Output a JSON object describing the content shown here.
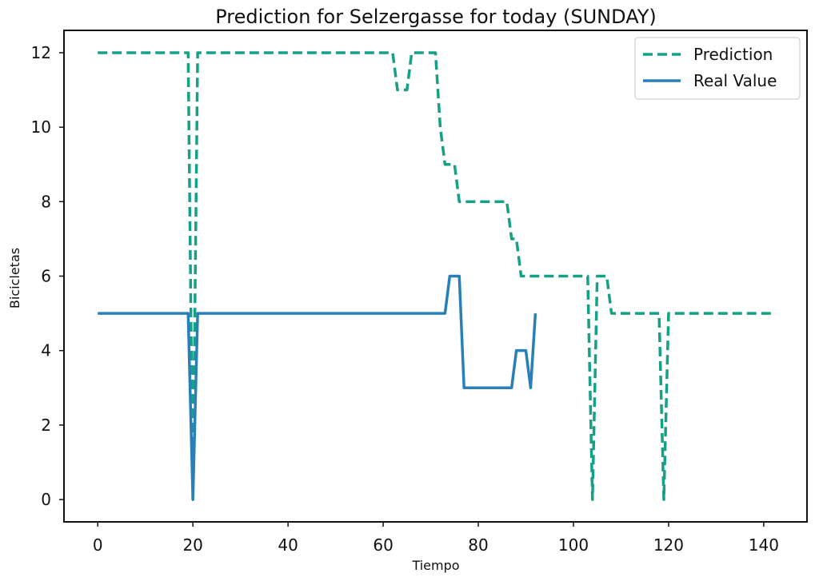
{
  "chart_data": {
    "type": "line",
    "title": "Prediction for Selzergasse for today (SUNDAY)",
    "xlabel": "Tiempo",
    "ylabel": "Bicicletas",
    "xlim": [
      -7.1,
      149.1
    ],
    "ylim": [
      -0.6,
      12.6
    ],
    "xticks": [
      0,
      20,
      40,
      60,
      80,
      100,
      120,
      140
    ],
    "yticks": [
      0,
      2,
      4,
      6,
      8,
      10,
      12
    ],
    "grid": false,
    "legend": "top-right",
    "series": [
      {
        "name": "Prediction",
        "style": "dashed",
        "color": "#16a085",
        "points": [
          [
            0,
            12
          ],
          [
            19,
            12
          ],
          [
            20,
            0
          ],
          [
            21,
            12
          ],
          [
            62,
            12
          ],
          [
            63,
            11
          ],
          [
            65,
            11
          ],
          [
            66,
            12
          ],
          [
            71,
            12
          ],
          [
            72,
            10
          ],
          [
            73,
            9
          ],
          [
            75,
            9
          ],
          [
            76,
            8
          ],
          [
            86,
            8
          ],
          [
            87,
            7
          ],
          [
            88,
            7
          ],
          [
            89,
            6
          ],
          [
            103,
            6
          ],
          [
            104,
            0
          ],
          [
            105,
            6
          ],
          [
            107,
            6
          ],
          [
            108,
            5
          ],
          [
            118,
            5
          ],
          [
            119,
            0
          ],
          [
            120,
            5
          ],
          [
            142,
            5
          ]
        ]
      },
      {
        "name": "Real Value",
        "style": "solid",
        "color": "#2980b9",
        "points": [
          [
            0,
            5
          ],
          [
            19,
            5
          ],
          [
            20,
            0
          ],
          [
            21,
            5
          ],
          [
            73,
            5
          ],
          [
            74,
            6
          ],
          [
            76,
            6
          ],
          [
            77,
            3
          ],
          [
            87,
            3
          ],
          [
            88,
            4
          ],
          [
            90,
            4
          ],
          [
            91,
            3
          ],
          [
            92,
            5
          ]
        ]
      }
    ]
  }
}
